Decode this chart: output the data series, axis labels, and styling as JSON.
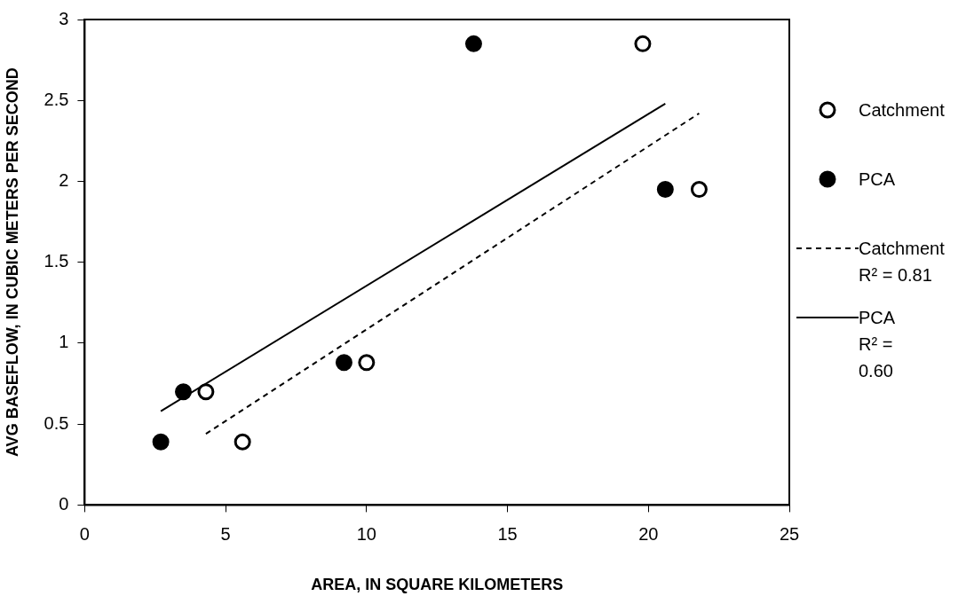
{
  "chart_data": {
    "type": "scatter",
    "xlabel": "AREA, IN SQUARE KILOMETERS",
    "ylabel": "AVG BASEFLOW, IN CUBIC METERS PER SECOND",
    "xlim": [
      0,
      25
    ],
    "xticks": [
      0,
      5,
      10,
      15,
      20,
      25
    ],
    "ylim": [
      0,
      3
    ],
    "yticks": [
      0,
      0.5,
      1,
      1.5,
      2,
      2.5,
      3
    ],
    "grid": false,
    "legend": "right",
    "marker": "circle",
    "series": [
      {
        "name": "Catchment",
        "color": "#ffffff",
        "x": [
          4.3,
          5.6,
          10.0,
          19.8,
          21.8
        ],
        "values": [
          0.7,
          0.39,
          0.88,
          2.85,
          1.95
        ]
      },
      {
        "name": "PCA",
        "color": "#000000",
        "x": [
          2.7,
          3.5,
          9.2,
          13.8,
          20.6
        ],
        "values": [
          0.39,
          0.7,
          0.88,
          2.85,
          1.95
        ]
      },
      {
        "name": "Catchment\nR² = 0.81",
        "type": "line",
        "color": "#000000",
        "line_style": "dashed",
        "marker": "none",
        "x": [
          4.3,
          21.8
        ],
        "values": [
          0.44,
          2.42
        ]
      },
      {
        "name": "PCA\nR² = 0.60",
        "type": "line",
        "color": "#000000",
        "line_style": "solid",
        "marker": "none",
        "x": [
          2.7,
          20.6
        ],
        "values": [
          0.58,
          2.48
        ]
      }
    ]
  }
}
